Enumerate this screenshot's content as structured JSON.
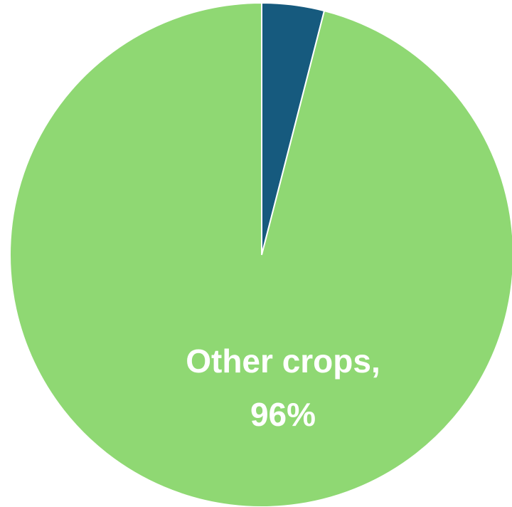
{
  "chart_data": {
    "type": "pie",
    "title": "",
    "start_angle_deg": 0,
    "direction": "clockwise",
    "slices": [
      {
        "category": "",
        "value": 4,
        "value_label": "",
        "color": "#165a7e"
      },
      {
        "category": "Other crops,",
        "value": 96,
        "value_label": "96%",
        "color": "#8fd873"
      }
    ],
    "slice_border_color": "#ffffff",
    "background": "#ffffff"
  }
}
